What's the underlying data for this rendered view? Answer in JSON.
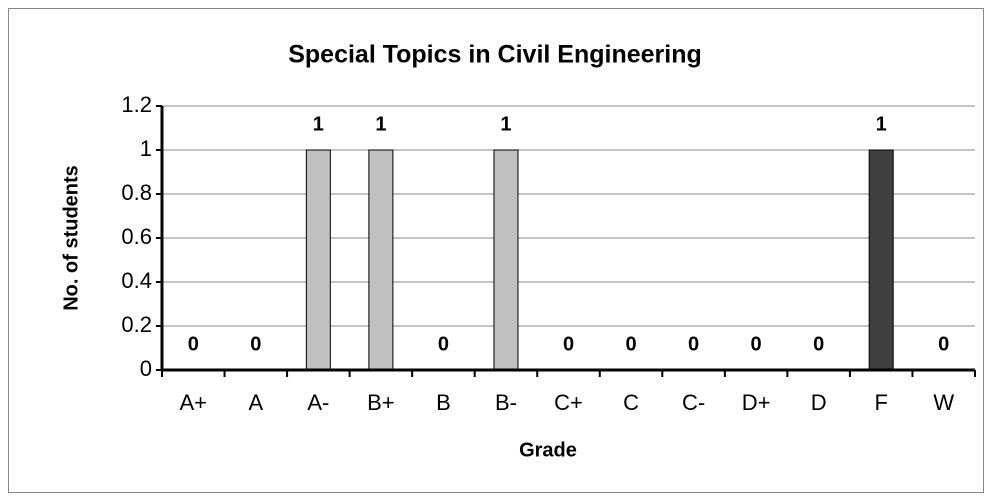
{
  "chart_data": {
    "type": "bar",
    "title": "Special Topics in Civil Engineering",
    "x_label": "Grade",
    "y_label": "No. of students",
    "categories": [
      "A+",
      "A",
      "A-",
      "B+",
      "B",
      "B-",
      "C+",
      "C",
      "C-",
      "D+",
      "D",
      "F",
      "W"
    ],
    "values": [
      0,
      0,
      1,
      1,
      0,
      1,
      0,
      0,
      0,
      0,
      0,
      1,
      0
    ],
    "colors": [
      "#c0c0c0",
      "#c0c0c0",
      "#c0c0c0",
      "#c0c0c0",
      "#c0c0c0",
      "#c0c0c0",
      "#c0c0c0",
      "#c0c0c0",
      "#c0c0c0",
      "#c0c0c0",
      "#c0c0c0",
      "#404040",
      "#c0c0c0"
    ],
    "ylim": [
      0,
      1.2
    ],
    "yticks": [
      0,
      0.2,
      0.4,
      0.6,
      0.8,
      1,
      1.2
    ],
    "grid": true
  }
}
